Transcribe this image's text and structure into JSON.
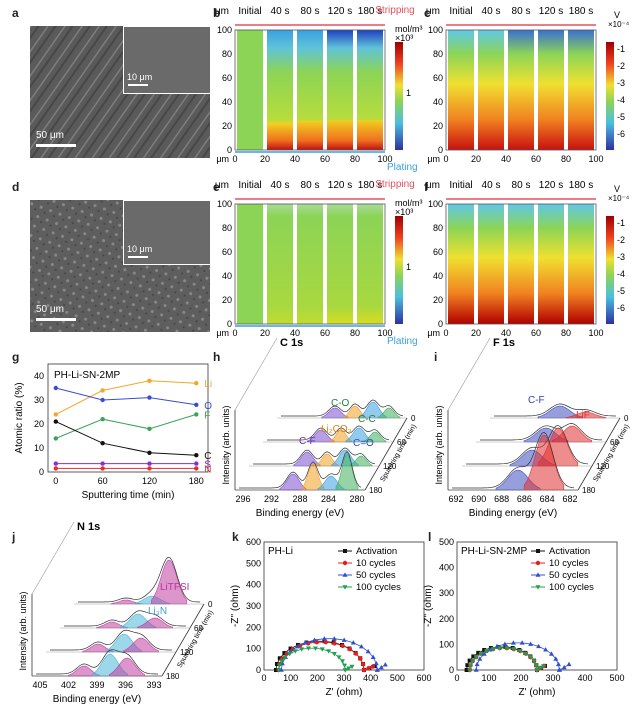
{
  "panel_labels": {
    "a": "a",
    "b": "b",
    "c": "c",
    "d": "d",
    "e": "e",
    "f": "f",
    "g": "g",
    "h": "h",
    "i": "i",
    "j": "j",
    "k": "k",
    "l": "l"
  },
  "sem": {
    "a_scale": "50 μm",
    "a_inset_scale": "10 μm",
    "d_scale": "50 μm",
    "d_inset_scale": "10 μm"
  },
  "maps": {
    "columns": [
      "Initial",
      "40 s",
      "80 s",
      "120 s",
      "180 s"
    ],
    "unit_um": "μm",
    "y_ticks": [
      "100",
      "80",
      "60",
      "40",
      "20",
      "0"
    ],
    "x_ticks": [
      "0",
      "20",
      "40",
      "60",
      "80",
      "100"
    ],
    "stripping": "Stripping",
    "plating": "Plating",
    "conc_unit_line1": "mol/m³",
    "conc_unit_line2": "×10³",
    "conc_tick": "1",
    "volt_unit": "V",
    "volt_mult": "×10⁻⁴",
    "volt_ticks": [
      "-1",
      "-2",
      "-3",
      "-4",
      "-5",
      "-6"
    ]
  },
  "chart_data": [
    {
      "id": "g",
      "type": "line",
      "title": "PH-Li-SN-2MP",
      "xlabel": "Sputtering time (min)",
      "ylabel": "Atomic ratio (%)",
      "x": [
        0,
        60,
        120,
        180
      ],
      "xlim": [
        -10,
        195
      ],
      "ylim": [
        0,
        45
      ],
      "x_ticks": [
        "0",
        "60",
        "120",
        "180"
      ],
      "y_ticks": [
        "0",
        "10",
        "20",
        "30",
        "40"
      ],
      "series": [
        {
          "name": "Li",
          "color": "#f5a623",
          "values": [
            24,
            34,
            38,
            37
          ]
        },
        {
          "name": "O",
          "color": "#3a4bd6",
          "values": [
            35,
            30,
            31,
            28
          ]
        },
        {
          "name": "F",
          "color": "#3aa35a",
          "values": [
            14,
            22,
            18,
            24
          ]
        },
        {
          "name": "C",
          "color": "#111111",
          "values": [
            21,
            12,
            8,
            7
          ]
        },
        {
          "name": "S",
          "color": "#8a2bd6",
          "values": [
            3.5,
            3.5,
            3.5,
            3.5
          ]
        },
        {
          "name": "N",
          "color": "#e03030",
          "values": [
            1.5,
            1.5,
            1.5,
            1.5
          ]
        }
      ]
    },
    {
      "id": "h",
      "type": "area",
      "title": "C 1s",
      "xlabel": "Binding energy (eV)",
      "ylabel": "Intensity (arb. units)",
      "x_ticks": [
        "296",
        "292",
        "288",
        "284",
        "280"
      ],
      "depth_label": "Sputtering time (min)",
      "depth_ticks": [
        "0",
        "60",
        "120",
        "180"
      ],
      "annotations": [
        "C-O",
        "C-C",
        "Li₂CO₃",
        "C-F",
        "C=O"
      ]
    },
    {
      "id": "i",
      "type": "area",
      "title": "F 1s",
      "xlabel": "Binding energy (eV)",
      "ylabel": "Intensity (arb. units)",
      "x_ticks": [
        "692",
        "690",
        "688",
        "686",
        "684",
        "682"
      ],
      "depth_label": "Sputtering time (min)",
      "depth_ticks": [
        "0",
        "60",
        "120",
        "180"
      ],
      "annotations": [
        "C-F",
        "LiF"
      ]
    },
    {
      "id": "j",
      "type": "area",
      "title": "N 1s",
      "xlabel": "Binding energy (eV)",
      "ylabel": "Intensity (arb. units)",
      "x_ticks": [
        "405",
        "402",
        "399",
        "396",
        "393"
      ],
      "depth_label": "Sputtering time (min)",
      "depth_ticks": [
        "0",
        "60",
        "120",
        "180"
      ],
      "annotations": [
        "LiTFSI",
        "Li₃N"
      ]
    },
    {
      "id": "k",
      "type": "scatter",
      "title": "PH-Li",
      "xlabel": "Z' (ohm)",
      "ylabel": "-Z'' (ohm)",
      "xlim": [
        0,
        600
      ],
      "ylim": [
        0,
        600
      ],
      "x_ticks": [
        "0",
        "100",
        "200",
        "300",
        "400",
        "500",
        "600"
      ],
      "y_ticks": [
        "0",
        "100",
        "200",
        "300",
        "400",
        "500",
        "600"
      ],
      "series": [
        {
          "name": "Activation",
          "color": "#111111",
          "marker": "square",
          "center": 210,
          "radius": 165,
          "tail": [
            [
              375,
              0
            ],
            [
              395,
              8
            ],
            [
              415,
              18
            ]
          ]
        },
        {
          "name": "10 cycles",
          "color": "#e02020",
          "marker": "circle",
          "center": 215,
          "radius": 160,
          "tail": [
            [
              375,
              0
            ],
            [
              392,
              8
            ],
            [
              408,
              16
            ]
          ]
        },
        {
          "name": "50 cycles",
          "color": "#3050d0",
          "marker": "triangle",
          "center": 245,
          "radius": 180,
          "tail": [
            [
              425,
              0
            ],
            [
              440,
              12
            ],
            [
              455,
              25
            ]
          ]
        },
        {
          "name": "100 cycles",
          "color": "#20a050",
          "marker": "triangle-down",
          "center": 180,
          "radius": 125,
          "tail": [
            [
              305,
              0
            ],
            [
              318,
              8
            ],
            [
              330,
              16
            ]
          ]
        }
      ]
    },
    {
      "id": "l",
      "type": "scatter",
      "title": "PH-Li-SN-2MP",
      "xlabel": "Z' (ohm)",
      "ylabel": "-Z'' (ohm)",
      "xlim": [
        0,
        500
      ],
      "ylim": [
        0,
        500
      ],
      "x_ticks": [
        "0",
        "100",
        "200",
        "300",
        "400",
        "500"
      ],
      "y_ticks": [
        "0",
        "100",
        "200",
        "300",
        "400",
        "500"
      ],
      "series": [
        {
          "name": "Activation",
          "color": "#111111",
          "marker": "square",
          "center": 140,
          "radius": 110,
          "tail": [
            [
              250,
              0
            ],
            [
              262,
              8
            ],
            [
              275,
              16
            ]
          ]
        },
        {
          "name": "10 cycles",
          "color": "#e02020",
          "marker": "circle",
          "center": 145,
          "radius": 105,
          "tail": [
            [
              250,
              0
            ],
            [
              260,
              8
            ],
            [
              272,
              16
            ]
          ]
        },
        {
          "name": "50 cycles",
          "color": "#3050d0",
          "marker": "triangle",
          "center": 190,
          "radius": 130,
          "tail": [
            [
              320,
              0
            ],
            [
              335,
              10
            ],
            [
              350,
              22
            ]
          ]
        },
        {
          "name": "100 cycles",
          "color": "#20a050",
          "marker": "triangle-down",
          "center": 145,
          "radius": 105,
          "tail": [
            [
              250,
              0
            ],
            [
              260,
              8
            ],
            [
              270,
              15
            ]
          ]
        }
      ]
    }
  ]
}
